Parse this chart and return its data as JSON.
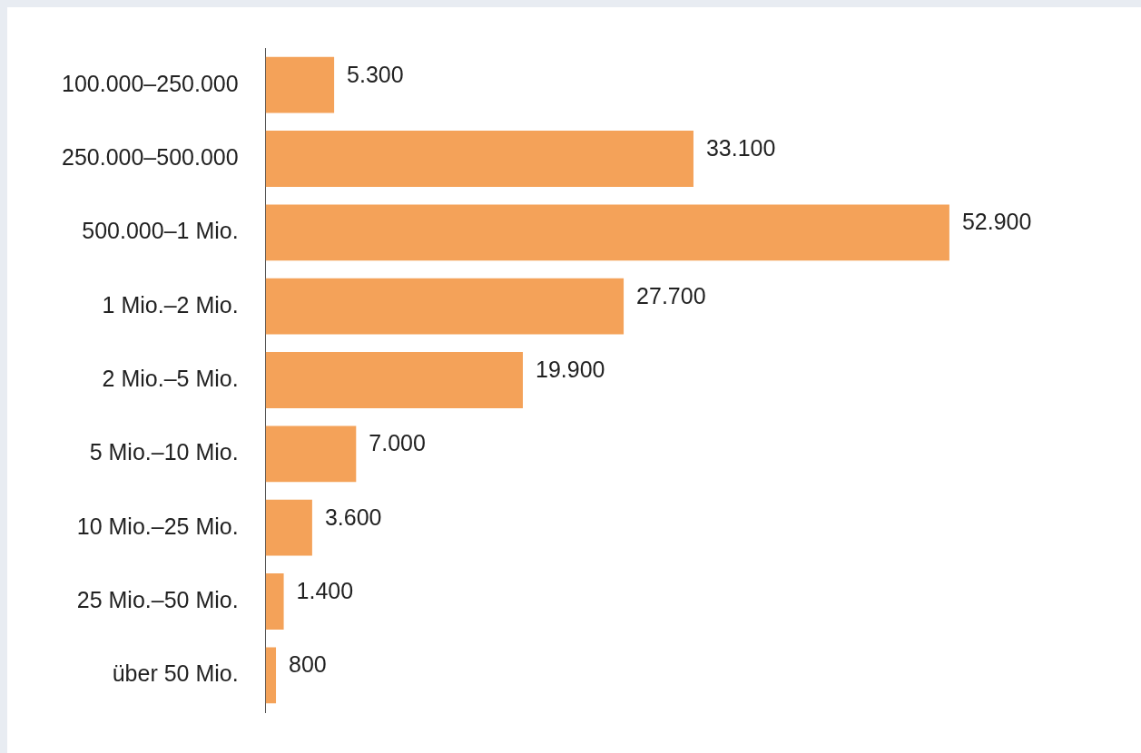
{
  "chart_data": {
    "type": "bar",
    "orientation": "horizontal",
    "categories": [
      "100.000–250.000",
      "250.000–500.000",
      "500.000–1 Mio.",
      "1 Mio.–2 Mio.",
      "2 Mio.–5 Mio.",
      "5 Mio.–10 Mio.",
      "10 Mio.–25 Mio.",
      "25 Mio.–50 Mio.",
      "über 50 Mio."
    ],
    "values": [
      5300,
      33100,
      52900,
      27700,
      19900,
      7000,
      3600,
      1400,
      800
    ],
    "value_labels": [
      "5.300",
      "33.100",
      "52.900",
      "27.700",
      "19.900",
      "7.000",
      "3.600",
      "1.400",
      "800"
    ],
    "color": "#f4a259",
    "legend": false,
    "tick_labels": "y"
  }
}
